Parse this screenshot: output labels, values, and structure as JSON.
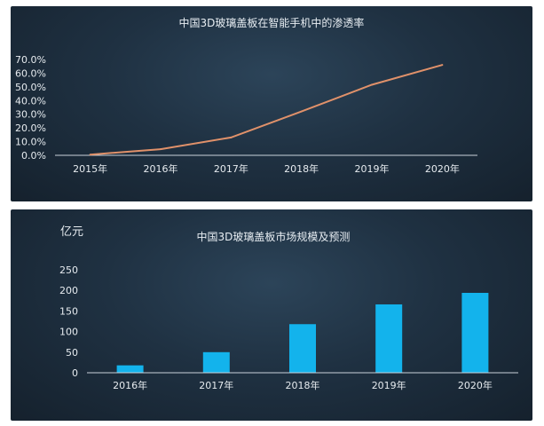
{
  "chart_data": [
    {
      "type": "line",
      "title": "中国3D玻璃盖板在智能手机中的渗透率",
      "categories": [
        "2015年",
        "2016年",
        "2017年",
        "2018年",
        "2019年",
        "2020年"
      ],
      "values": [
        0.5,
        4.5,
        13.0,
        32.0,
        51.5,
        66.0
      ],
      "yticks": [
        "0.0%",
        "10.0%",
        "20.0%",
        "30.0%",
        "40.0%",
        "50.0%",
        "60.0%",
        "70.0%"
      ],
      "ylim": [
        0,
        70
      ],
      "grid": false,
      "colors": {
        "line": "#e0916a"
      }
    },
    {
      "type": "bar",
      "title": "中国3D玻璃盖板市场规模及预测",
      "ylabel": "亿元",
      "categories": [
        "2016年",
        "2017年",
        "2018年",
        "2019年",
        "2020年"
      ],
      "values": [
        18,
        50,
        118,
        166,
        194
      ],
      "yticks": [
        "0",
        "50",
        "100",
        "150",
        "200",
        "250"
      ],
      "ylim": [
        0,
        250
      ],
      "grid": false,
      "colors": {
        "bar": "#13b3ec"
      }
    }
  ]
}
